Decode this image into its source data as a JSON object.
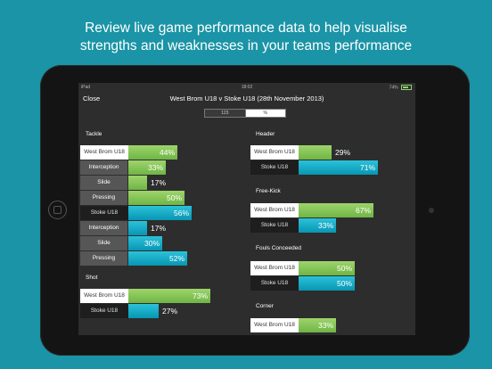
{
  "headline": {
    "line1": "Review live game performance data to help visualise",
    "line2": "strengths and weaknesses in your teams performance"
  },
  "statusbar": {
    "device": "iPad",
    "time": "18:02",
    "battery": "74%"
  },
  "navbar": {
    "close_label": "Close",
    "title": "West Brom U18 v Stoke U18 (28th November 2013)"
  },
  "segmented": {
    "options": [
      "123",
      "%"
    ],
    "selected": "%"
  },
  "colors": {
    "green": "#7cc152",
    "blue": "#0fa8c4",
    "background": "#1a94a6"
  },
  "left_sections": [
    {
      "title": "Tackle",
      "rows": [
        {
          "label": "West Brom U18",
          "value": "44%",
          "fraction": 0.44,
          "kind": "team-light",
          "color": "green"
        },
        {
          "label": "Interception",
          "value": "33%",
          "fraction": 0.33,
          "kind": "sub",
          "color": "green"
        },
        {
          "label": "Slide",
          "value": "17%",
          "fraction": 0.17,
          "kind": "sub",
          "color": "green"
        },
        {
          "label": "Pressing",
          "value": "50%",
          "fraction": 0.5,
          "kind": "sub",
          "color": "green"
        },
        {
          "label": "Stoke U18",
          "value": "56%",
          "fraction": 0.56,
          "kind": "team-dark",
          "color": "blue"
        },
        {
          "label": "Interception",
          "value": "17%",
          "fraction": 0.17,
          "kind": "sub",
          "color": "blue"
        },
        {
          "label": "Slide",
          "value": "30%",
          "fraction": 0.3,
          "kind": "sub",
          "color": "blue"
        },
        {
          "label": "Pressing",
          "value": "52%",
          "fraction": 0.52,
          "kind": "sub",
          "color": "blue"
        }
      ]
    },
    {
      "title": "Shot",
      "rows": [
        {
          "label": "West Brom U18",
          "value": "73%",
          "fraction": 0.73,
          "kind": "team-light",
          "color": "green"
        },
        {
          "label": "Stoke U18",
          "value": "27%",
          "fraction": 0.27,
          "kind": "team-dark",
          "color": "blue"
        }
      ]
    }
  ],
  "right_sections": [
    {
      "title": "Header",
      "rows": [
        {
          "label": "West Brom U18",
          "value": "29%",
          "fraction": 0.29,
          "kind": "team-light",
          "color": "green"
        },
        {
          "label": "Stoke U18",
          "value": "71%",
          "fraction": 0.71,
          "kind": "team-dark",
          "color": "blue"
        }
      ]
    },
    {
      "title": "Free-Kick",
      "rows": [
        {
          "label": "West Brom U18",
          "value": "67%",
          "fraction": 0.67,
          "kind": "team-light",
          "color": "green"
        },
        {
          "label": "Stoke U18",
          "value": "33%",
          "fraction": 0.33,
          "kind": "team-dark",
          "color": "blue"
        }
      ]
    },
    {
      "title": "Fouls Conceeded",
      "rows": [
        {
          "label": "West Brom U18",
          "value": "50%",
          "fraction": 0.5,
          "kind": "team-light",
          "color": "green"
        },
        {
          "label": "Stoke U18",
          "value": "50%",
          "fraction": 0.5,
          "kind": "team-dark",
          "color": "blue"
        }
      ]
    },
    {
      "title": "Corner",
      "rows": [
        {
          "label": "West Brom U18",
          "value": "33%",
          "fraction": 0.33,
          "kind": "team-light",
          "color": "green"
        }
      ]
    }
  ]
}
